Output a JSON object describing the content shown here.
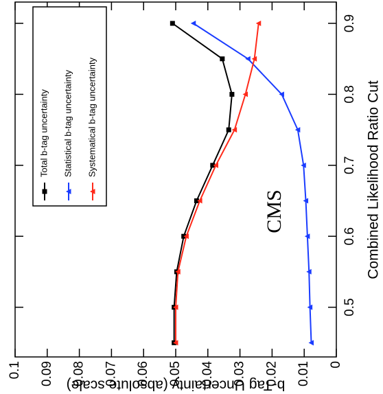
{
  "chart_data": {
    "type": "line",
    "xlabel": "Combined Likelihood Ratio Cut",
    "ylabel": "b-Tag Uncertainty (absolute scale)",
    "annotation": "CMS",
    "annotation_color": "#ff2a1a",
    "x": [
      0.45,
      0.5,
      0.55,
      0.6,
      0.65,
      0.7,
      0.75,
      0.8,
      0.85,
      0.9
    ],
    "series": [
      {
        "name": "Total b-tag uncertainty",
        "color": "#000000",
        "marker": "square",
        "values": [
          0.0505,
          0.0505,
          0.0497,
          0.0475,
          0.0435,
          0.0385,
          0.0335,
          0.0325,
          0.0355,
          0.051
        ]
      },
      {
        "name": "Statistical b-tag uncertainty",
        "color": "#1a3cff",
        "marker": "triangle",
        "values": [
          0.0078,
          0.0082,
          0.0085,
          0.009,
          0.0095,
          0.0102,
          0.012,
          0.017,
          0.0275,
          0.0445
        ]
      },
      {
        "name": "Systematical b-tag uncertainty",
        "color": "#ff2a1a",
        "marker": "triangle",
        "values": [
          0.05,
          0.05,
          0.0493,
          0.0467,
          0.0425,
          0.0375,
          0.0317,
          0.0283,
          0.0255,
          0.0242
        ]
      }
    ],
    "xlim": [
      0.43,
      0.93
    ],
    "xticks": [
      0.5,
      0.6,
      0.7,
      0.8,
      0.9
    ],
    "ylim": [
      0,
      0.1
    ],
    "yticks": [
      0,
      0.01,
      0.02,
      0.03,
      0.04,
      0.05,
      0.06,
      0.07,
      0.08,
      0.09,
      0.1
    ],
    "legend": "upper right"
  }
}
